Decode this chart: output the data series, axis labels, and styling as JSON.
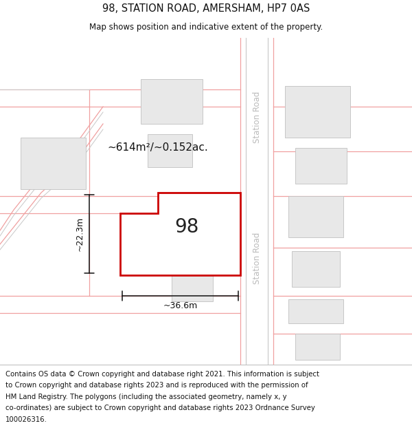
{
  "title": "98, STATION ROAD, AMERSHAM, HP7 0AS",
  "subtitle": "Map shows position and indicative extent of the property.",
  "map_bg": "#ffffff",
  "road_line_color": "#f0a0a0",
  "road_line_color2": "#c8c8c8",
  "building_color": "#e8e8e8",
  "building_edge": "#c0c0c0",
  "property_fill": "#ffffff",
  "property_edge": "#cc0000",
  "property_edge_width": 2.0,
  "area_text": "~614m²/~0.152ac.",
  "dim_h_text": "~22.3m",
  "dim_w_text": "~36.6m",
  "property_label": "98",
  "road_label": "Station Road",
  "footer_lines": [
    "Contains OS data © Crown copyright and database right 2021. This information is subject",
    "to Crown copyright and database rights 2023 and is reproduced with the permission of",
    "HM Land Registry. The polygons (including the associated geometry, namely x, y",
    "co-ordinates) are subject to Crown copyright and database rights 2023 Ordnance Survey",
    "100026316."
  ]
}
